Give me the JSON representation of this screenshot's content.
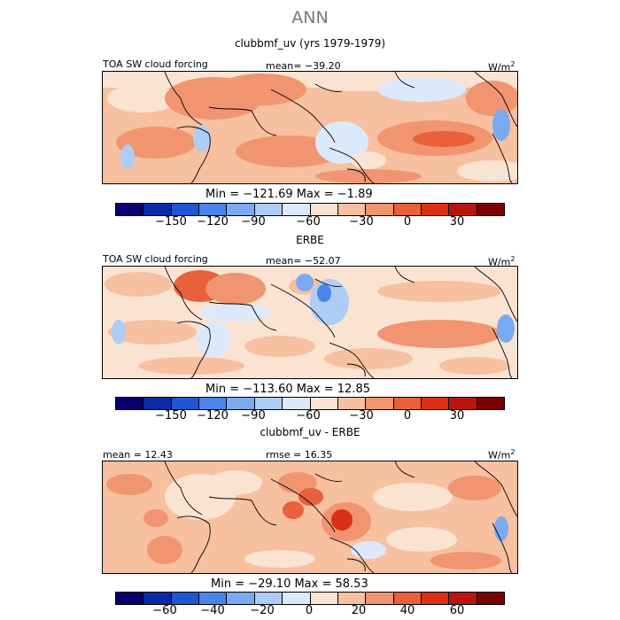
{
  "title": "ANN",
  "colors": [
    "#08006e",
    "#0a2aa8",
    "#1f56d4",
    "#4a84ec",
    "#7aaaf2",
    "#aecdf6",
    "#dce9fa",
    "#fbe3d2",
    "#f7c0a0",
    "#f09570",
    "#e8603c",
    "#dc2f14",
    "#b8160c",
    "#7a0303"
  ],
  "chart_data": [
    {
      "type": "heatmap",
      "title": "clubbmf_uv (yrs 1979-1979)",
      "left_label": "TOA SW cloud forcing",
      "center_label": "mean= −39.20",
      "units": "W/m",
      "units_sup": "2",
      "min_max": "Min = −121.69 Max =  −1.89",
      "ticks": [
        "−150",
        "−120",
        "−90",
        "−60",
        "−30",
        "0",
        "30"
      ]
    },
    {
      "type": "heatmap",
      "title": "ERBE",
      "left_label": "TOA SW cloud forcing",
      "center_label": "mean= −52.07",
      "units": "W/m",
      "units_sup": "2",
      "min_max": "Min = −113.60 Max =  12.85",
      "ticks": [
        "−150",
        "−120",
        "−90",
        "−60",
        "−30",
        "0",
        "30"
      ]
    },
    {
      "type": "heatmap",
      "title": "clubbmf_uv - ERBE",
      "left_label": "mean =  12.43",
      "center_label": "rmse =  16.35",
      "units": "W/m",
      "units_sup": "2",
      "min_max": "Min = −29.10 Max =  58.53",
      "ticks": [
        "−60",
        "−40",
        "−20",
        "0",
        "20",
        "40",
        "60"
      ]
    }
  ]
}
